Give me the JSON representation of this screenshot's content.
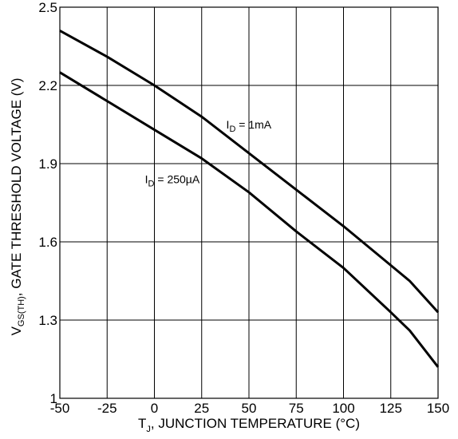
{
  "chart_data": {
    "type": "line",
    "title": "",
    "xlabel": {
      "prefix": "T",
      "subscript": "J",
      "suffix": ", JUNCTION TEMPERATURE (°C)"
    },
    "ylabel": {
      "prefix": "V",
      "subscript": "GS(TH)",
      "suffix": ", GATE THRESHOLD VOLTAGE (V)"
    },
    "xlim": [
      -50,
      150
    ],
    "ylim": [
      1.0,
      2.5
    ],
    "x_ticks": [
      -50,
      -25,
      0,
      25,
      50,
      75,
      100,
      125,
      150
    ],
    "x_tick_labels": [
      "-50",
      "-25",
      "0",
      "25",
      "50",
      "75",
      "100",
      "125",
      "150"
    ],
    "y_ticks": [
      1.0,
      1.3,
      1.6,
      1.9,
      2.2,
      2.5
    ],
    "y_tick_labels": [
      "1",
      "1.3",
      "1.6",
      "1.9",
      "2.2",
      "2.5"
    ],
    "grid": true,
    "series": [
      {
        "name": {
          "prefix": "I",
          "subscript": "D",
          "suffix": " = 1mA"
        },
        "x": [
          -50,
          -25,
          0,
          25,
          50,
          75,
          100,
          125,
          135,
          150
        ],
        "y": [
          2.41,
          2.31,
          2.2,
          2.08,
          1.94,
          1.8,
          1.66,
          1.51,
          1.45,
          1.33
        ]
      },
      {
        "name": {
          "prefix": "I",
          "subscript": "D",
          "suffix": " = 250µA"
        },
        "x": [
          -50,
          -25,
          0,
          25,
          50,
          75,
          100,
          125,
          135,
          150
        ],
        "y": [
          2.25,
          2.14,
          2.03,
          1.92,
          1.79,
          1.64,
          1.5,
          1.33,
          1.26,
          1.12
        ]
      }
    ]
  }
}
